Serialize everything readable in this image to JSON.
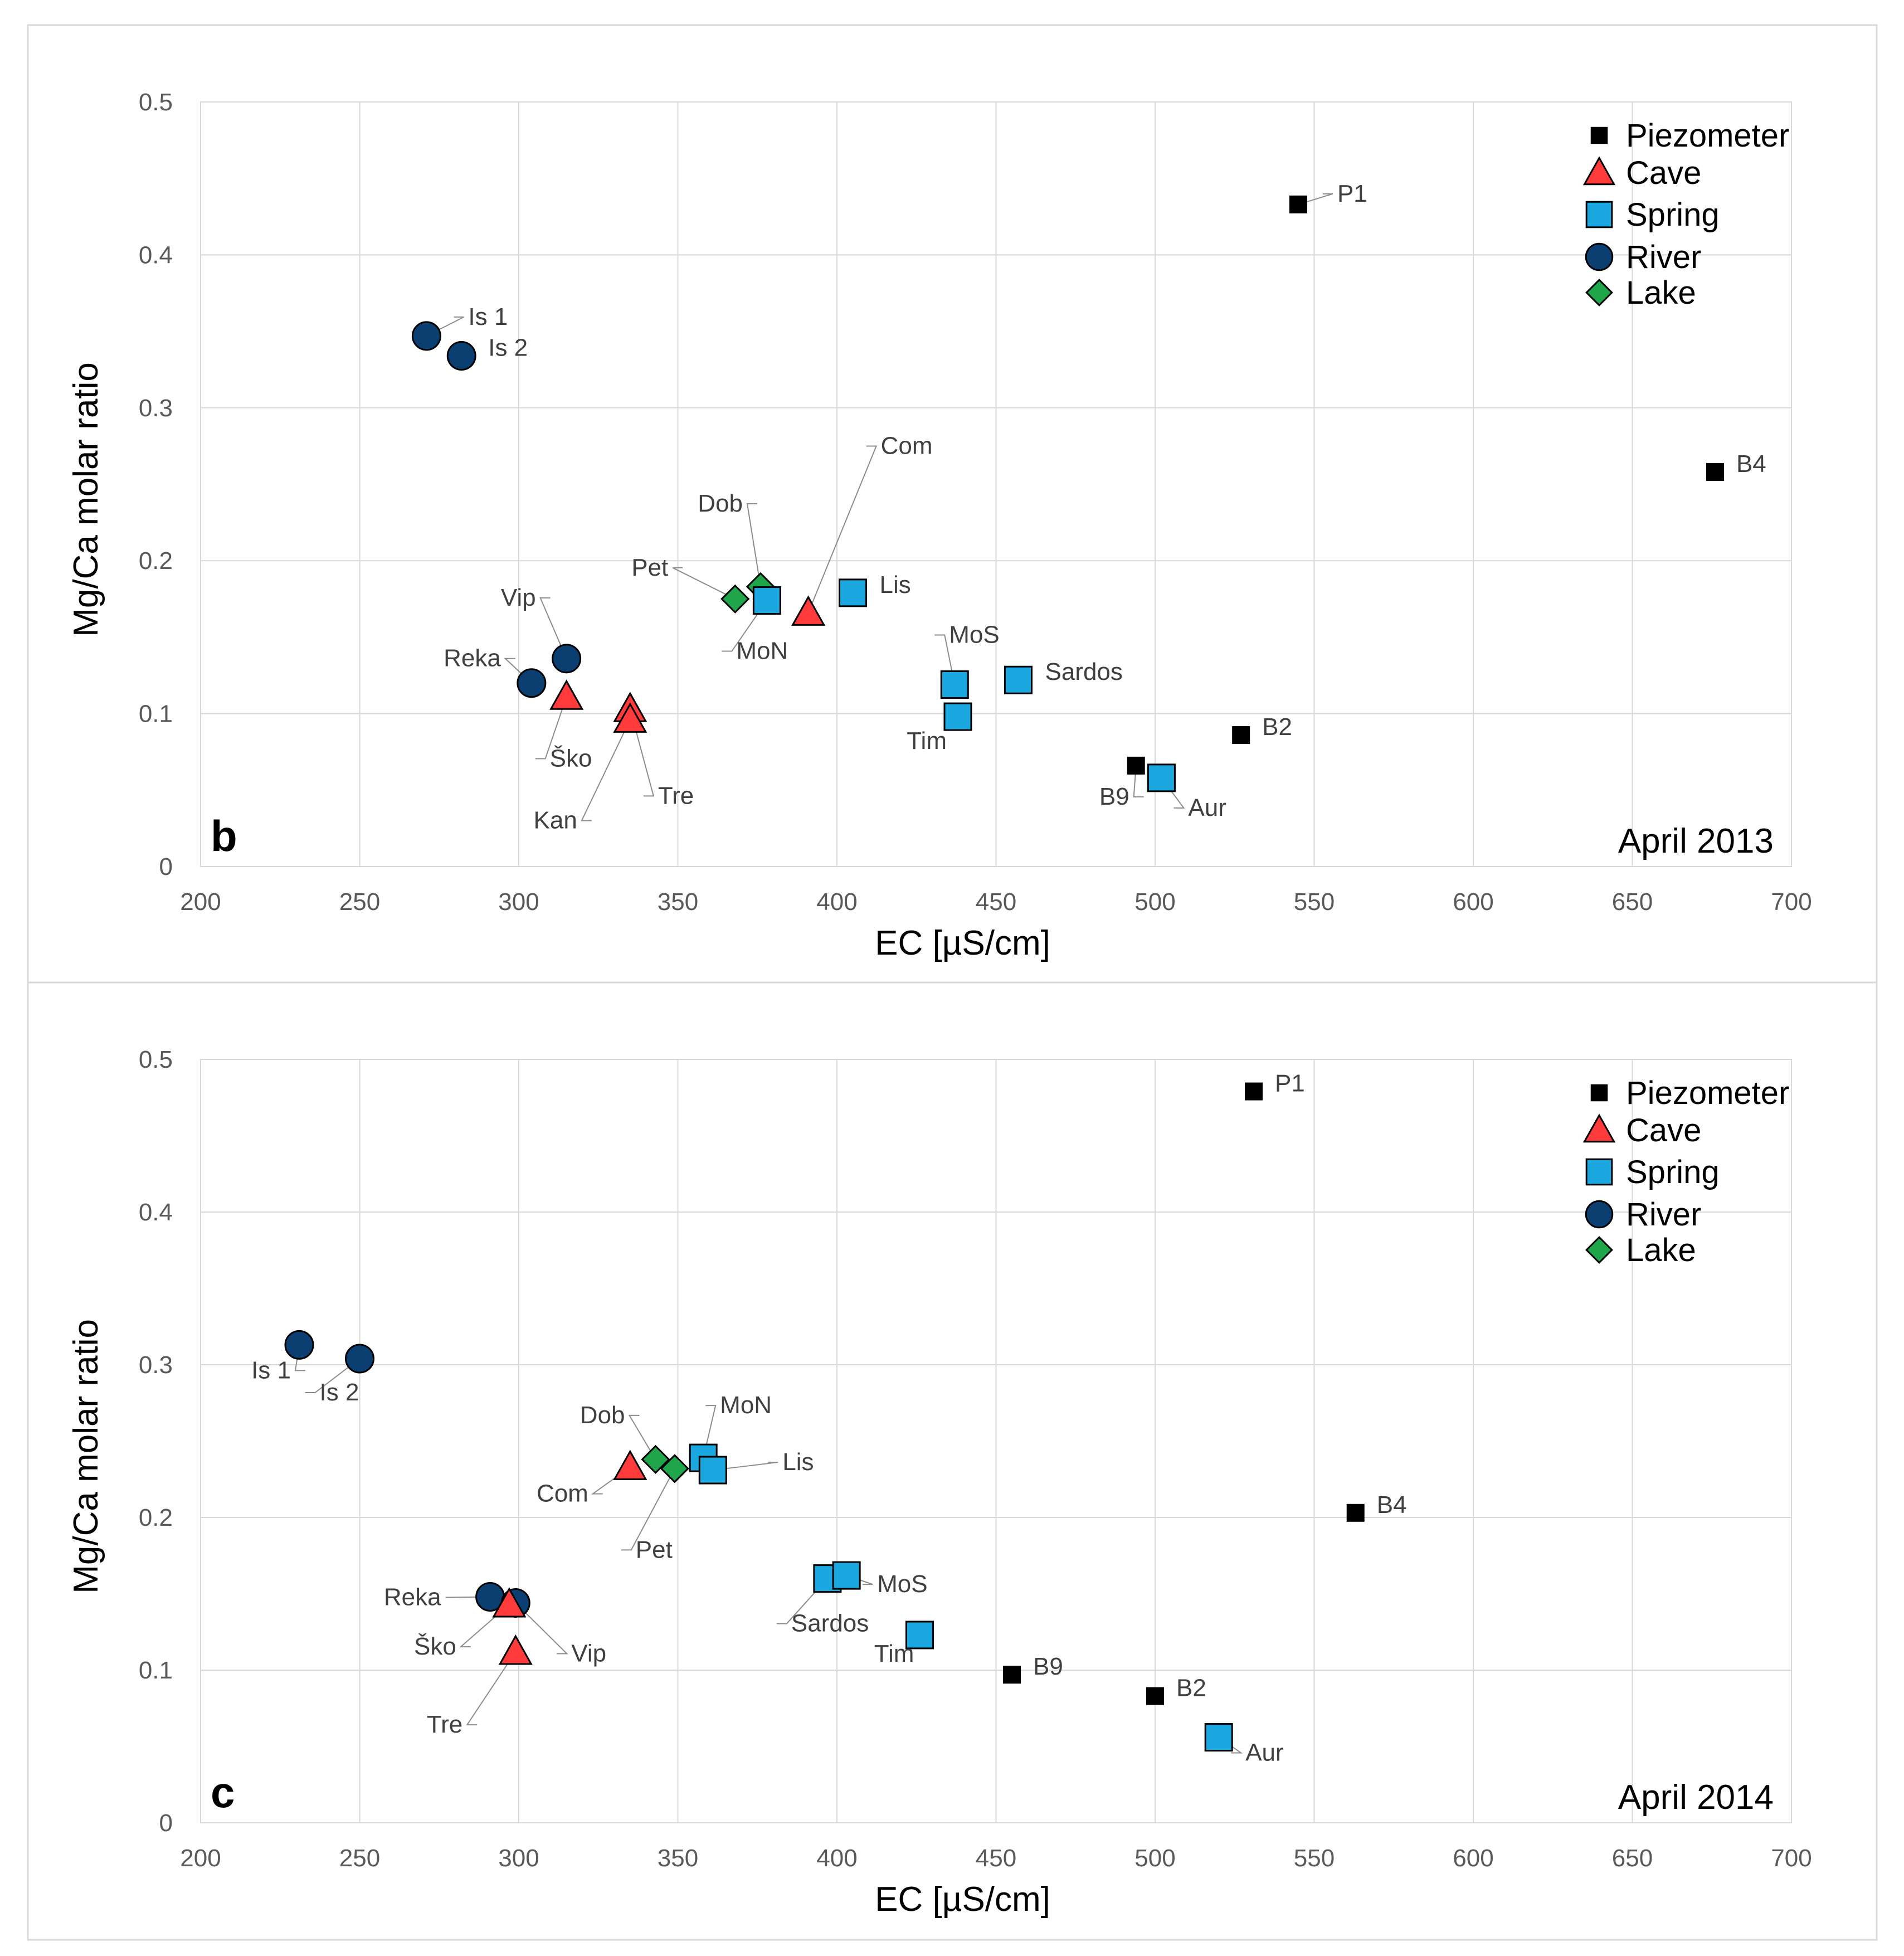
{
  "colors": {
    "piezometer": "#000000",
    "cave": "#ff3b3b",
    "spring": "#1ba7e0",
    "river": "#0b3f72",
    "lake": "#1fa64a",
    "grid": "#d9d9d9",
    "frame": "#d9d9d9"
  },
  "chart_data": [
    {
      "type": "scatter",
      "panel_letter": "b",
      "date_label": "April 2013",
      "xlabel": "EC [µS/cm]",
      "ylabel": "Mg/Ca molar ratio",
      "xlim": [
        200,
        700
      ],
      "ylim": [
        0,
        0.5
      ],
      "x_ticks": [
        "200",
        "250",
        "300",
        "350",
        "400",
        "450",
        "500",
        "550",
        "600",
        "650",
        "700"
      ],
      "y_ticks": [
        "0",
        "0.1",
        "0.2",
        "0.3",
        "0.4",
        "0.5"
      ],
      "legend": [
        {
          "name": "Piezometer",
          "marker": "square-small",
          "color_key": "piezometer"
        },
        {
          "name": "Cave",
          "marker": "triangle",
          "color_key": "cave"
        },
        {
          "name": "Spring",
          "marker": "square",
          "color_key": "spring"
        },
        {
          "name": "River",
          "marker": "circle",
          "color_key": "river"
        },
        {
          "name": "Lake",
          "marker": "diamond",
          "color_key": "lake"
        }
      ],
      "series": [
        {
          "name": "Piezometer",
          "points": [
            {
              "label": "P1",
              "x": 545,
              "y": 0.433
            },
            {
              "label": "B4",
              "x": 676,
              "y": 0.258
            },
            {
              "label": "B2",
              "x": 527,
              "y": 0.086
            },
            {
              "label": "B9",
              "x": 494,
              "y": 0.066
            }
          ]
        },
        {
          "name": "Cave",
          "points": [
            {
              "label": "Com",
              "x": 391,
              "y": 0.166
            },
            {
              "label": "Ško",
              "x": 315,
              "y": 0.111
            },
            {
              "label": "Tre",
              "x": 335,
              "y": 0.103
            },
            {
              "label": "Kan",
              "x": 335,
              "y": 0.096
            }
          ]
        },
        {
          "name": "Spring",
          "points": [
            {
              "label": "MoN",
              "x": 378,
              "y": 0.174
            },
            {
              "label": "Lis",
              "x": 405,
              "y": 0.179
            },
            {
              "label": "MoS",
              "x": 437,
              "y": 0.119
            },
            {
              "label": "Sardos",
              "x": 457,
              "y": 0.122
            },
            {
              "label": "Tim",
              "x": 438,
              "y": 0.098
            },
            {
              "label": "Aur",
              "x": 502,
              "y": 0.058
            }
          ]
        },
        {
          "name": "River",
          "points": [
            {
              "label": "Is 1",
              "x": 271,
              "y": 0.347
            },
            {
              "label": "Is 2",
              "x": 282,
              "y": 0.334
            },
            {
              "label": "Vip",
              "x": 315,
              "y": 0.136
            },
            {
              "label": "Reka",
              "x": 304,
              "y": 0.12
            }
          ]
        },
        {
          "name": "Lake",
          "points": [
            {
              "label": "Dob",
              "x": 376,
              "y": 0.183
            },
            {
              "label": "Pet",
              "x": 368,
              "y": 0.175
            }
          ]
        }
      ]
    },
    {
      "type": "scatter",
      "panel_letter": "c",
      "date_label": "April 2014",
      "xlabel": "EC [µS/cm]",
      "ylabel": "Mg/Ca molar ratio",
      "xlim": [
        200,
        700
      ],
      "ylim": [
        0,
        0.5
      ],
      "x_ticks": [
        "200",
        "250",
        "300",
        "350",
        "400",
        "450",
        "500",
        "550",
        "600",
        "650",
        "700"
      ],
      "y_ticks": [
        "0",
        "0.1",
        "0.2",
        "0.3",
        "0.4",
        "0.5"
      ],
      "legend": [
        {
          "name": "Piezometer",
          "marker": "square-small",
          "color_key": "piezometer"
        },
        {
          "name": "Cave",
          "marker": "triangle",
          "color_key": "cave"
        },
        {
          "name": "Spring",
          "marker": "square",
          "color_key": "spring"
        },
        {
          "name": "River",
          "marker": "circle",
          "color_key": "river"
        },
        {
          "name": "Lake",
          "marker": "diamond",
          "color_key": "lake"
        }
      ],
      "series": [
        {
          "name": "Piezometer",
          "points": [
            {
              "label": "P1",
              "x": 531,
              "y": 0.479
            },
            {
              "label": "B4",
              "x": 563,
              "y": 0.203
            },
            {
              "label": "B9",
              "x": 455,
              "y": 0.097
            },
            {
              "label": "B2",
              "x": 500,
              "y": 0.083
            }
          ]
        },
        {
          "name": "Cave",
          "points": [
            {
              "label": "Com",
              "x": 335,
              "y": 0.233
            },
            {
              "label": "Ško",
              "x": 297,
              "y": 0.143
            },
            {
              "label": "Tre",
              "x": 299,
              "y": 0.112
            }
          ]
        },
        {
          "name": "Spring",
          "points": [
            {
              "label": "MoN",
              "x": 358,
              "y": 0.239
            },
            {
              "label": "Lis",
              "x": 361,
              "y": 0.231
            },
            {
              "label": "Sardos",
              "x": 397,
              "y": 0.16
            },
            {
              "label": "MoS",
              "x": 403,
              "y": 0.162
            },
            {
              "label": "Tim",
              "x": 426,
              "y": 0.123
            },
            {
              "label": "Aur",
              "x": 520,
              "y": 0.056
            }
          ]
        },
        {
          "name": "River",
          "points": [
            {
              "label": "Is 1",
              "x": 231,
              "y": 0.313
            },
            {
              "label": "Is 2",
              "x": 250,
              "y": 0.304
            },
            {
              "label": "Reka",
              "x": 291,
              "y": 0.148
            },
            {
              "label": "Vip",
              "x": 299,
              "y": 0.144
            }
          ]
        },
        {
          "name": "Lake",
          "points": [
            {
              "label": "Dob",
              "x": 343,
              "y": 0.238
            },
            {
              "label": "Pet",
              "x": 349,
              "y": 0.232
            }
          ]
        }
      ]
    }
  ]
}
